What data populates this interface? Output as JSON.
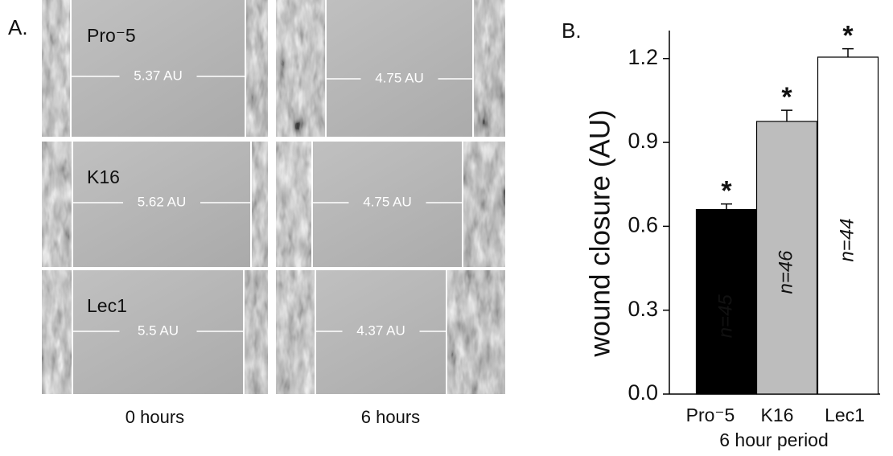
{
  "panel_a": {
    "label": "A.",
    "column_labels": [
      "0 hours",
      "6 hours"
    ],
    "rows": [
      {
        "label": "Pro⁻5",
        "measurements": [
          "5.37 AU",
          "4.75 AU"
        ]
      },
      {
        "label": "K16",
        "measurements": [
          "5.62 AU",
          "4.75 AU"
        ]
      },
      {
        "label": "Lec1",
        "measurements": [
          "5.5 AU",
          "4.37 AU"
        ]
      }
    ]
  },
  "chart_data": {
    "type": "bar",
    "panel_label": "B.",
    "categories": [
      "Pro⁻5",
      "K16",
      "Lec1"
    ],
    "values": [
      0.66,
      0.975,
      1.205
    ],
    "errors": [
      0.02,
      0.04,
      0.03
    ],
    "colors": [
      "#000000",
      "#bdbdbd",
      "#ffffff"
    ],
    "bar_labels": [
      "n=45",
      "n=46",
      "n=44"
    ],
    "annotations": [
      "*",
      "*",
      "*"
    ],
    "x_label": "6 hour period",
    "y_label": "wound closure (AU)",
    "ylim": [
      0,
      1.3
    ],
    "yticks": [
      {
        "value": 0,
        "label": "0.0"
      },
      0.3,
      0.6,
      0.9,
      1.2
    ]
  }
}
